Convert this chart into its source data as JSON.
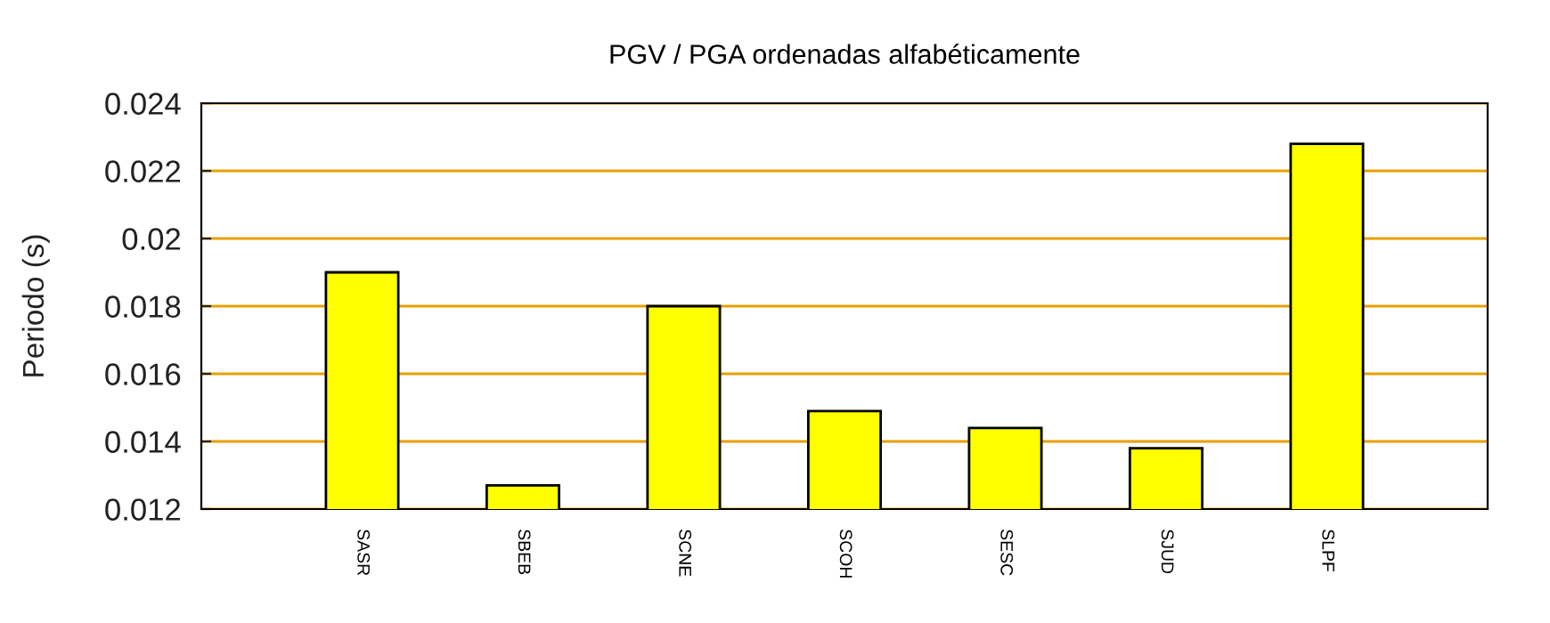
{
  "chart_data": {
    "type": "bar",
    "title": "PGV / PGA ordenadas alfabéticamente",
    "ylabel": "Periodo (s)",
    "categories": [
      "SASR",
      "SBEB",
      "SCNE",
      "SCOH",
      "SESC",
      "SJUD",
      "SLPF"
    ],
    "values": [
      0.019,
      0.0127,
      0.018,
      0.0149,
      0.0144,
      0.0138,
      0.0228
    ],
    "color": "#ffff00",
    "ylim": [
      0.012,
      0.024
    ],
    "yticks": [
      0.012,
      0.014,
      0.016,
      0.018,
      0.02,
      0.022,
      0.024
    ],
    "grid": "y"
  }
}
